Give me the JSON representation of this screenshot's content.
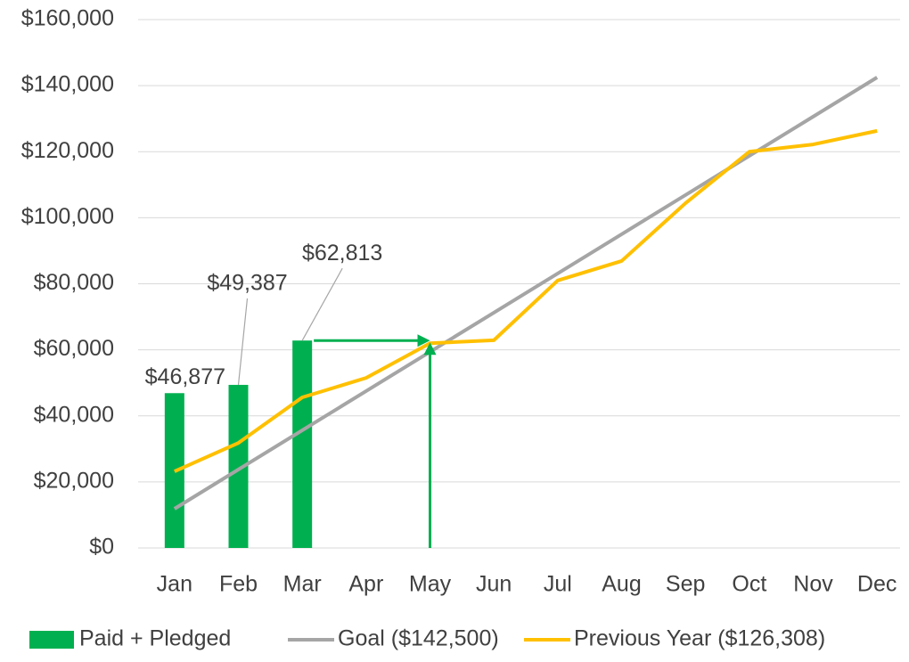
{
  "chart_data": {
    "type": "combo",
    "categories": [
      "Jan",
      "Feb",
      "Mar",
      "Apr",
      "May",
      "Jun",
      "Jul",
      "Aug",
      "Sep",
      "Oct",
      "Nov",
      "Dec"
    ],
    "series": [
      {
        "name": "Paid + Pledged",
        "type": "bar",
        "color": "#00b050",
        "values": [
          46877,
          49387,
          62813,
          null,
          null,
          null,
          null,
          null,
          null,
          null,
          null,
          null
        ],
        "value_labels": [
          "$46,877",
          "$49,387",
          "$62,813",
          null,
          null,
          null,
          null,
          null,
          null,
          null,
          null,
          null
        ]
      },
      {
        "name": "Goal ($142,500)",
        "type": "line",
        "color": "#a5a5a5",
        "values": [
          11875,
          23750,
          35625,
          47500,
          59375,
          71250,
          83125,
          95000,
          106875,
          118750,
          130625,
          142500
        ]
      },
      {
        "name": "Previous Year ($126,308)",
        "type": "line",
        "color": "#ffc000",
        "values": [
          23200,
          31800,
          45600,
          51500,
          62000,
          62900,
          81000,
          86900,
          104400,
          120000,
          122200,
          126308
        ]
      }
    ],
    "ylim": [
      0,
      160000
    ],
    "yticks": [
      {
        "value": 0,
        "label": "$0"
      },
      {
        "value": 20000,
        "label": "$20,000"
      },
      {
        "value": 40000,
        "label": "$40,000"
      },
      {
        "value": 60000,
        "label": "$60,000"
      },
      {
        "value": 80000,
        "label": "$80,000"
      },
      {
        "value": 100000,
        "label": "$100,000"
      },
      {
        "value": 120000,
        "label": "$120,000"
      },
      {
        "value": 140000,
        "label": "$140,000"
      },
      {
        "value": 160000,
        "label": "$160,000"
      }
    ],
    "grid": true,
    "legend": "bottom"
  }
}
